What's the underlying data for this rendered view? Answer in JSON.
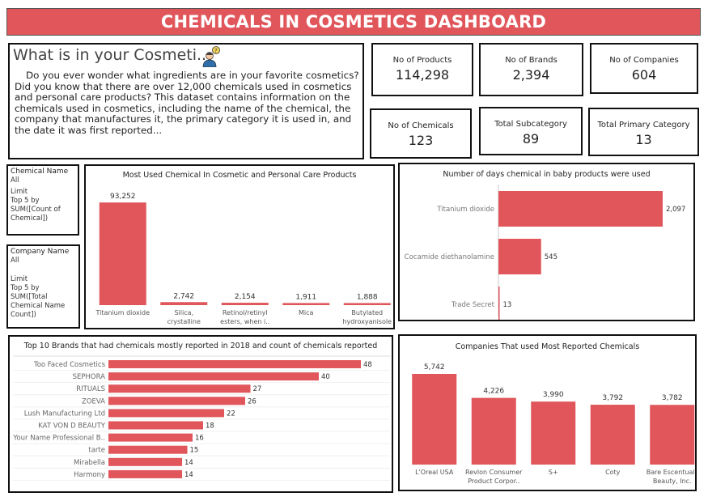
{
  "header": {
    "title": "CHEMICALS IN COSMETICS DASHBOARD"
  },
  "intro": {
    "title": "What is in your Cosmeti..",
    "text": "Do you ever wonder what ingredients are in your favorite cosmetics? Did you know that there are over 12,000 chemicals used in cosmetics   and personal care products? This dataset contains information on the chemicals used in cosmetics, including the name of the chemical, the company that manufactures it, the primary category it is used in, and the date it was first reported...",
    "icon": "person-thinking-icon"
  },
  "kpis": [
    {
      "label": "No of Products",
      "value": "114,298"
    },
    {
      "label": "No of Brands",
      "value": "2,394"
    },
    {
      "label": "No of Companies",
      "value": "604"
    },
    {
      "label": "No of Chemicals",
      "value": "123"
    },
    {
      "label": "Total Subcategory",
      "value": "89"
    },
    {
      "label": "Total Primary Category",
      "value": "13"
    }
  ],
  "filters": {
    "chemical": {
      "title": "Chemical Name",
      "value": "All",
      "limit_label": "Limit",
      "limit_text": "Top 5 by SUM([Count of Chemical])"
    },
    "company": {
      "title": "Company Name",
      "value": "All",
      "limit_label": "Limit",
      "limit_text": "Top 5 by SUM([Total Chemical Name Count])"
    }
  },
  "colors": {
    "bar": "#e0565b",
    "accent": "#e0565b"
  },
  "chart_data": [
    {
      "id": "most-used",
      "type": "bar",
      "title": "Most Used Chemical In Cosmetic and Personal Care Products",
      "categories": [
        "Titanium dioxide",
        "Silica, crystalline (airborne particle..",
        "Retinol/retinyl esters, when i..",
        "Mica",
        "Butylated hydroxyanisole"
      ],
      "values": [
        93252,
        2742,
        2154,
        1911,
        1888
      ],
      "value_labels": [
        "93,252",
        "2,742",
        "2,154",
        "1,911",
        "1,888"
      ],
      "ylim": [
        0,
        100000
      ]
    },
    {
      "id": "baby-days",
      "type": "bar",
      "orientation": "horizontal",
      "title": "Number of days chemical in baby products were used",
      "categories": [
        "Titanium dioxide",
        "Cocamide diethanolamine",
        "Trade Secret"
      ],
      "values": [
        2097,
        545,
        13
      ],
      "value_labels": [
        "2,097",
        "545",
        "13"
      ],
      "xlim": [
        0,
        2200
      ]
    },
    {
      "id": "top-brands",
      "type": "bar",
      "orientation": "horizontal",
      "title": "Top 10 Brands that had chemicals mostly reported in 2018 and count of chemicals reported",
      "categories": [
        "Too Faced Cosmetics",
        "SEPHORA",
        "RITUALS",
        "ZOEVA",
        "Lush Manufacturing Ltd",
        "KAT VON D BEAUTY",
        "Your Name Professional B..",
        "tarte",
        "Mirabella",
        "Harmony"
      ],
      "values": [
        48,
        40,
        27,
        26,
        22,
        18,
        16,
        15,
        14,
        14
      ],
      "value_labels": [
        "48",
        "40",
        "27",
        "26",
        "22",
        "18",
        "16",
        "15",
        "14",
        "14"
      ],
      "xlim": [
        0,
        48
      ]
    },
    {
      "id": "companies",
      "type": "bar",
      "title": "Companies That used Most Reported Chemicals",
      "categories": [
        "L'Oreal USA",
        "Revlon Consumer Product Corpor..",
        "S+",
        "Coty",
        "Bare Escentuals Beauty, Inc."
      ],
      "values": [
        5742,
        4226,
        3990,
        3792,
        3782
      ],
      "value_labels": [
        "5,742",
        "4,226",
        "3,990",
        "3,792",
        "3,782"
      ],
      "ylim": [
        0,
        5742
      ]
    }
  ]
}
